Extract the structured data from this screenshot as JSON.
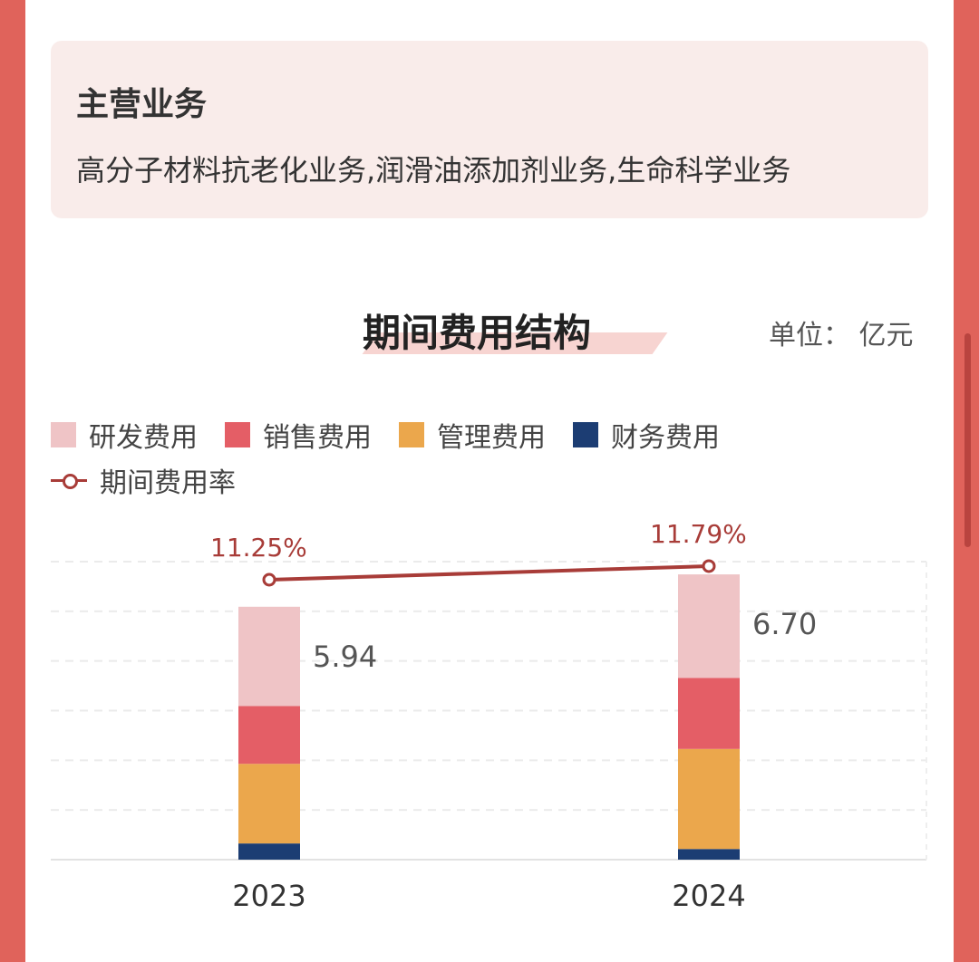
{
  "business": {
    "title": "主营业务",
    "text": "高分子材料抗老化业务,润滑油添加剂业务,生命科学业务"
  },
  "chart_header": {
    "title": "期间费用结构",
    "unit": "单位：  亿元"
  },
  "legend": [
    {
      "name": "研发费用",
      "color": "#efc4c6"
    },
    {
      "name": "销售费用",
      "color": "#e45e66"
    },
    {
      "name": "管理费用",
      "color": "#eba74c"
    },
    {
      "name": "财务费用",
      "color": "#1c3d73"
    }
  ],
  "legend_line": {
    "name": "期间费用率",
    "color": "#a83c38"
  },
  "chart_data": {
    "type": "bar",
    "stacked": true,
    "categories": [
      "2023",
      "2024"
    ],
    "series": [
      {
        "name": "财务费用",
        "values": [
          0.38,
          0.25
        ]
      },
      {
        "name": "管理费用",
        "values": [
          1.87,
          2.35
        ]
      },
      {
        "name": "销售费用",
        "values": [
          1.36,
          1.67
        ]
      },
      {
        "name": "研发费用",
        "values": [
          2.33,
          2.43
        ]
      }
    ],
    "totals": [
      5.94,
      6.7
    ],
    "total_labels": [
      "5.94",
      "6.70"
    ],
    "line_series": {
      "name": "期间费用率",
      "values": [
        11.25,
        11.79
      ],
      "labels": [
        "11.25%",
        "11.79%"
      ]
    },
    "grid": true,
    "legend_position": "top-left"
  }
}
